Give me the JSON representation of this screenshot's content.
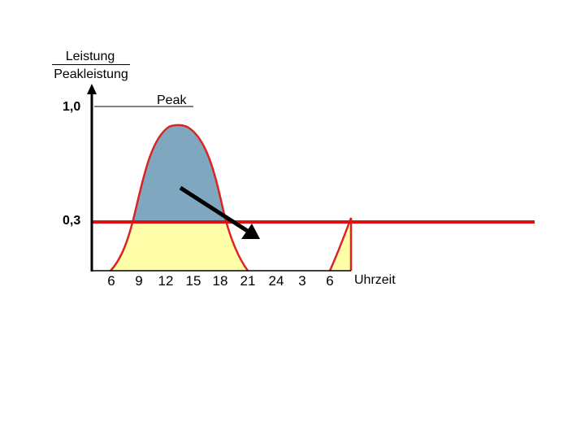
{
  "chart_data": {
    "type": "area",
    "ylabel_numerator": "Leistung",
    "ylabel_denominator": "Peakleistung",
    "y_ticks": [
      "1,0",
      "0,3"
    ],
    "y_tick_values": [
      1.0,
      0.3
    ],
    "xlabel": "Uhrzeit",
    "x_tick_labels": [
      "6",
      "9",
      "12",
      "15",
      "18",
      "21",
      "24",
      "3",
      "6"
    ],
    "peak_label": "Peak",
    "threshold": 0.3,
    "peak_value": 1.0,
    "peak_time": 13,
    "colors": {
      "curve": "#dd2222",
      "threshold_line": "#dd1111",
      "above_threshold_fill": "#7fa7bf",
      "below_threshold_fill": "#ffffaa",
      "arrow": "#000000"
    }
  }
}
